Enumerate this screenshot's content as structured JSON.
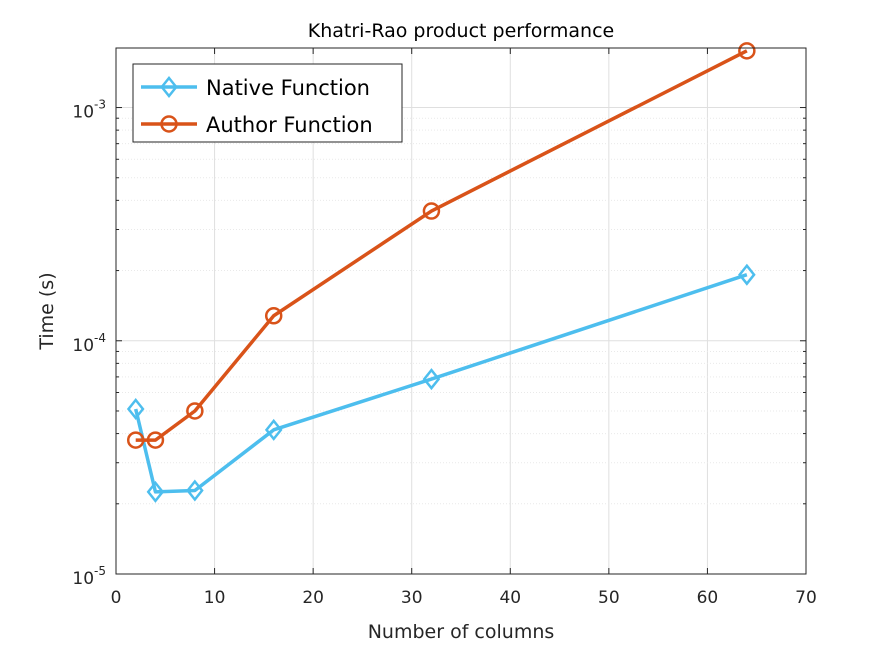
{
  "chart_data": {
    "type": "line",
    "title": "Khatri-Rao product performance",
    "xlabel": "Number of columns",
    "ylabel": "Time (s)",
    "xlim": [
      0,
      70
    ],
    "ylim": [
      1e-05,
      0.0018
    ],
    "yscale": "log",
    "grid": true,
    "legend_position": "top-left",
    "x_ticks": [
      0,
      10,
      20,
      30,
      40,
      50,
      60,
      70
    ],
    "y_ticks": [
      {
        "value": 1e-05,
        "base": "10",
        "exp": "-5"
      },
      {
        "value": 0.0001,
        "base": "10",
        "exp": "-4"
      },
      {
        "value": 0.001,
        "base": "10",
        "exp": "-3"
      }
    ],
    "x": [
      2,
      4,
      8,
      16,
      32,
      64
    ],
    "series": [
      {
        "name": "Native Function",
        "color": "#4DBEEE",
        "marker": "diamond",
        "values": [
          5.1e-05,
          2.25e-05,
          2.28e-05,
          4.15e-05,
          6.85e-05,
          0.000192
        ]
      },
      {
        "name": "Author Function",
        "color": "#D95319",
        "marker": "circle",
        "values": [
          3.75e-05,
          3.75e-05,
          5e-05,
          0.000128,
          0.00036,
          0.00175
        ]
      }
    ]
  }
}
